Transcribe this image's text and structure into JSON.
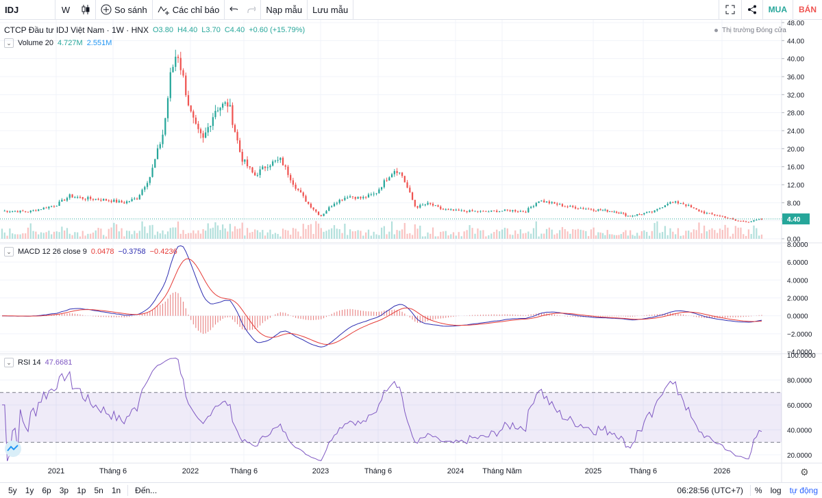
{
  "toolbar": {
    "symbol": "IDJ",
    "interval": "W",
    "compare": "So sánh",
    "indicators": "Các chỉ báo",
    "load_layout": "Nạp mẫu",
    "save_layout": "Lưu mẫu",
    "buy": "MUA",
    "sell": "BÁN"
  },
  "legend": {
    "title": "CTCP Đầu tư IDJ Việt Nam · 1W · HNX",
    "o": "O3.80",
    "h": "H4.40",
    "l": "L3.70",
    "c": "C4.40",
    "chg": "+0.60 (+15.79%)",
    "market_status": "Thị trường Đóng cửa",
    "volume_name": "Volume 20",
    "volume_v1": "4.727M",
    "volume_v2": "2.551M",
    "macd_name": "MACD 12 26 close 9",
    "macd_hist": "0.0478",
    "macd_macd": "−0.3758",
    "macd_signal": "−0.4236",
    "rsi_name": "RSI 14",
    "rsi_value": "47.6681"
  },
  "axes": {
    "price_ticks": [
      "48.00",
      "44.00",
      "40.00",
      "36.00",
      "32.00",
      "28.00",
      "24.00",
      "20.00",
      "16.00",
      "12.00",
      "8.00",
      "4.00",
      "0.00"
    ],
    "price_tick_values": [
      48,
      44,
      40,
      36,
      32,
      28,
      24,
      20,
      16,
      12,
      8,
      4,
      0
    ],
    "last_price": "4.40",
    "last_price_value": 4.4,
    "macd_ticks": [
      "8.0000",
      "6.0000",
      "4.0000",
      "2.0000",
      "0.0000",
      "−2.0000",
      "−4.0000"
    ],
    "macd_tick_values": [
      8,
      6,
      4,
      2,
      0,
      -2,
      -4
    ],
    "rsi_ticks": [
      "100.0000",
      "80.0000",
      "60.0000",
      "40.0000",
      "20.0000"
    ],
    "rsi_tick_values": [
      100,
      80,
      60,
      40,
      20
    ],
    "time_labels": [
      "2021",
      "Tháng 6",
      "2022",
      "Tháng 6",
      "2023",
      "Tháng 6",
      "2024",
      "Tháng Năm",
      "2025",
      "Tháng 6",
      "2026"
    ]
  },
  "chart_data": {
    "type": "line",
    "x": [
      2020.6,
      2020.8,
      2021.0,
      2021.1,
      2021.2,
      2021.3,
      2021.4,
      2021.5,
      2021.6,
      2021.7,
      2021.8,
      2021.85,
      2021.9,
      2021.95,
      2022.0,
      2022.05,
      2022.1,
      2022.2,
      2022.3,
      2022.4,
      2022.5,
      2022.6,
      2022.7,
      2022.8,
      2022.9,
      2023.0,
      2023.1,
      2023.2,
      2023.3,
      2023.4,
      2023.5,
      2023.55,
      2023.6,
      2023.7,
      2023.8,
      2023.9,
      2024.0,
      2024.2,
      2024.4,
      2024.5,
      2024.6,
      2024.8,
      2025.0,
      2025.2,
      2025.3,
      2025.4,
      2025.5,
      2025.6,
      2025.7,
      2025.8,
      2025.9,
      2026.0,
      2026.1,
      2026.2,
      2026.3
    ],
    "series": [
      {
        "values": [
          6.2,
          6.0,
          7.5,
          9.5,
          9.0,
          8.8,
          8.5,
          8.0,
          9.0,
          14.0,
          24.0,
          36.0,
          42.0,
          35.0,
          28.0,
          24.0,
          22.0,
          29.0,
          30.0,
          18.0,
          14.0,
          16.5,
          17.5,
          12.0,
          8.0,
          5.0,
          8.0,
          9.5,
          9.0,
          10.0,
          14.0,
          15.5,
          14.0,
          7.0,
          7.8,
          6.5,
          6.2,
          6.0,
          6.3,
          6.0,
          8.5,
          7.2,
          6.5,
          6.0,
          5.0,
          5.5,
          6.0,
          8.0,
          8.0,
          6.5,
          5.5,
          5.0,
          4.0,
          3.8,
          4.4
        ]
      }
    ],
    "ylim": [
      0,
      48
    ]
  }
}
